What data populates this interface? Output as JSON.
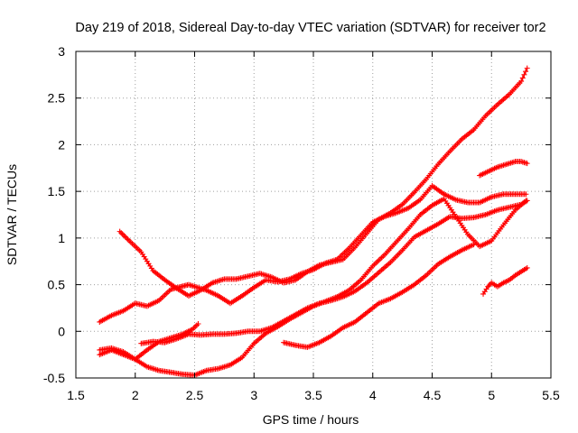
{
  "chart_data": {
    "type": "scatter",
    "title": "Day 219 of 2018, Sidereal Day-to-day VTEC variation (SDTVAR) for receiver tor2",
    "xlabel": "GPS time / hours",
    "ylabel": "SDTVAR / TECUs",
    "xlim": [
      1.5,
      5.5
    ],
    "ylim": [
      -0.5,
      3
    ],
    "xticks": [
      "1.5",
      "2",
      "2.5",
      "3",
      "3.5",
      "4",
      "4.5",
      "5",
      "5.5"
    ],
    "yticks": [
      "-0.5",
      "0",
      "0.5",
      "1",
      "1.5",
      "2",
      "2.5",
      "3"
    ],
    "grid": true,
    "marker": "+",
    "color": "#ff0000",
    "series": [
      {
        "name": "track-1",
        "x": [
          1.7,
          1.8,
          1.9,
          2.0,
          2.1,
          2.2,
          2.3,
          2.45,
          2.6,
          2.7,
          2.8,
          2.9,
          3.0,
          3.1,
          3.2,
          3.3,
          3.4,
          3.5,
          3.6,
          3.7,
          3.8,
          3.9,
          4.0,
          4.1,
          4.2,
          4.3,
          4.4,
          4.5,
          4.6,
          4.7,
          4.8,
          4.9,
          5.0,
          5.1,
          5.2,
          5.29
        ],
        "y": [
          0.1,
          0.17,
          0.22,
          0.3,
          0.27,
          0.33,
          0.45,
          0.5,
          0.44,
          0.38,
          0.3,
          0.38,
          0.47,
          0.55,
          0.53,
          0.56,
          0.62,
          0.66,
          0.73,
          0.77,
          0.89,
          1.03,
          1.17,
          1.23,
          1.27,
          1.32,
          1.41,
          1.56,
          1.47,
          1.41,
          1.38,
          1.38,
          1.44,
          1.47,
          1.47,
          1.47
        ]
      },
      {
        "name": "track-2",
        "x": [
          1.87,
          1.95,
          2.05,
          2.15,
          2.25,
          2.35,
          2.45,
          2.55,
          2.65,
          2.75,
          2.85,
          2.95,
          3.05,
          3.15,
          3.25,
          3.35,
          3.45,
          3.55,
          3.65,
          3.75,
          3.85,
          3.95,
          4.05,
          4.15,
          4.25,
          4.35,
          4.45,
          4.55,
          4.65,
          4.75,
          4.85,
          4.95,
          5.05,
          5.15,
          5.25,
          5.3
        ],
        "y": [
          1.07,
          0.97,
          0.85,
          0.65,
          0.55,
          0.46,
          0.38,
          0.44,
          0.52,
          0.56,
          0.56,
          0.59,
          0.62,
          0.58,
          0.52,
          0.55,
          0.64,
          0.71,
          0.74,
          0.77,
          0.9,
          1.05,
          1.2,
          1.27,
          1.36,
          1.49,
          1.63,
          1.79,
          1.93,
          2.06,
          2.16,
          2.31,
          2.43,
          2.54,
          2.68,
          2.82
        ]
      },
      {
        "name": "track-3",
        "x": [
          1.7,
          1.8,
          1.9,
          2.0,
          2.1,
          2.2,
          2.3,
          2.4,
          2.5,
          2.6,
          2.7,
          2.8,
          2.9,
          3.0,
          3.1,
          3.2,
          3.3,
          3.4,
          3.5,
          3.6,
          3.7,
          3.8,
          3.9,
          4.0,
          4.1,
          4.2,
          4.3,
          4.4,
          4.5,
          4.6,
          4.7,
          4.8,
          4.9,
          5.0,
          5.1,
          5.2,
          5.29
        ],
        "y": [
          -0.25,
          -0.2,
          -0.25,
          -0.3,
          -0.38,
          -0.42,
          -0.44,
          -0.46,
          -0.47,
          -0.42,
          -0.4,
          -0.36,
          -0.28,
          -0.13,
          -0.02,
          0.05,
          0.13,
          0.2,
          0.27,
          0.32,
          0.37,
          0.44,
          0.55,
          0.7,
          0.82,
          0.96,
          1.1,
          1.25,
          1.35,
          1.42,
          1.23,
          1.04,
          0.91,
          0.97,
          1.14,
          1.3,
          1.4
        ]
      },
      {
        "name": "track-4",
        "x": [
          2.05,
          2.15,
          2.25,
          2.35,
          2.45,
          2.55,
          2.65,
          2.75,
          2.85,
          2.95,
          3.05,
          3.15,
          3.25,
          3.35,
          3.45,
          3.55,
          3.65,
          3.75,
          3.85,
          3.95,
          4.05,
          4.15,
          4.25,
          4.35,
          4.45,
          4.55,
          4.65,
          4.75,
          4.85,
          4.95,
          5.05,
          5.15,
          5.25,
          5.3
        ],
        "y": [
          -0.13,
          -0.11,
          -0.12,
          -0.08,
          -0.03,
          -0.04,
          -0.03,
          -0.03,
          -0.02,
          0.0,
          0.0,
          0.04,
          0.11,
          0.18,
          0.25,
          0.3,
          0.33,
          0.37,
          0.43,
          0.52,
          0.63,
          0.74,
          0.87,
          1.01,
          1.08,
          1.15,
          1.23,
          1.21,
          1.22,
          1.25,
          1.3,
          1.33,
          1.36,
          1.4
        ]
      },
      {
        "name": "track-5",
        "x": [
          1.7,
          1.8,
          1.9,
          2.0,
          2.1,
          2.2,
          2.3,
          2.4,
          2.48,
          2.53
        ],
        "y": [
          -0.2,
          -0.18,
          -0.22,
          -0.3,
          -0.2,
          -0.11,
          -0.07,
          -0.03,
          0.02,
          0.08
        ]
      },
      {
        "name": "track-6",
        "x": [
          3.25,
          3.35,
          3.45,
          3.55,
          3.65,
          3.75,
          3.85,
          3.95,
          4.05,
          4.15,
          4.25,
          4.35,
          4.45,
          4.55,
          4.65,
          4.75,
          4.85
        ],
        "y": [
          -0.12,
          -0.15,
          -0.17,
          -0.12,
          -0.05,
          0.04,
          0.1,
          0.2,
          0.3,
          0.35,
          0.42,
          0.5,
          0.6,
          0.72,
          0.8,
          0.87,
          0.93
        ]
      },
      {
        "name": "track-7",
        "x": [
          4.9,
          4.95,
          5.0,
          5.05,
          5.1,
          5.15,
          5.2,
          5.25,
          5.3
        ],
        "y": [
          1.67,
          1.7,
          1.73,
          1.76,
          1.78,
          1.8,
          1.82,
          1.82,
          1.8
        ]
      },
      {
        "name": "track-8",
        "x": [
          4.93,
          4.97,
          5.0,
          5.05,
          5.1,
          5.15,
          5.2,
          5.25,
          5.3
        ],
        "y": [
          0.4,
          0.48,
          0.52,
          0.48,
          0.52,
          0.55,
          0.6,
          0.64,
          0.68
        ]
      }
    ]
  }
}
